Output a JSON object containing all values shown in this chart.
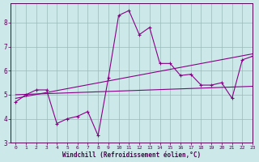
{
  "x": [
    0,
    1,
    2,
    3,
    4,
    5,
    6,
    7,
    8,
    9,
    10,
    11,
    12,
    13,
    14,
    15,
    16,
    17,
    18,
    19,
    20,
    21,
    22,
    23
  ],
  "windchill": [
    4.7,
    5.0,
    5.2,
    5.2,
    3.8,
    4.0,
    4.1,
    4.3,
    3.3,
    5.7,
    8.3,
    8.5,
    7.5,
    7.8,
    6.3,
    6.3,
    5.8,
    5.85,
    5.4,
    5.4,
    5.5,
    4.85,
    6.45,
    6.6
  ],
  "reg1_start": 5.0,
  "reg1_end": 5.35,
  "reg2_start": 4.85,
  "reg2_end": 6.7,
  "line_color": "#880088",
  "bg_color": "#cce8e8",
  "grid_color": "#99bbbb",
  "axis_color": "#550055",
  "text_color": "#550055",
  "xlabel": "Windchill (Refroidissement éolien,°C)",
  "ylim": [
    3.0,
    8.8
  ],
  "xlim": [
    -0.5,
    23
  ],
  "yticks": [
    3,
    4,
    5,
    6,
    7,
    8
  ],
  "xticks": [
    0,
    1,
    2,
    3,
    4,
    5,
    6,
    7,
    8,
    9,
    10,
    11,
    12,
    13,
    14,
    15,
    16,
    17,
    18,
    19,
    20,
    21,
    22,
    23
  ]
}
